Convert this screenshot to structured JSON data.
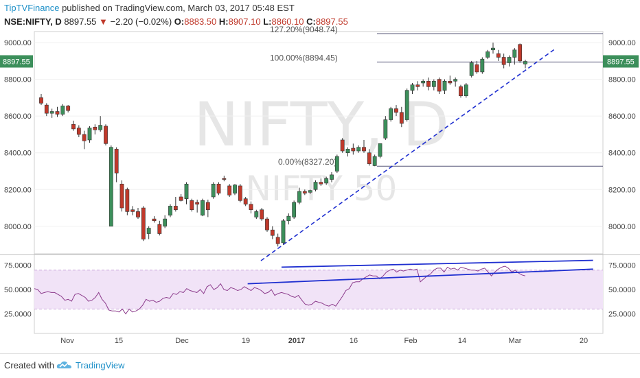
{
  "header": {
    "brand": "TipTVFinance",
    "published_text": "published on TradingView.com, March 03, 2017 05:48 EST",
    "symbol": "NSE:NIFTY, D",
    "last": "8897.55",
    "change": "−2.20 (−0.02%)",
    "open_label": "O:",
    "open": "8883.50",
    "high_label": "H:",
    "high": "8907.10",
    "low_label": "L:",
    "low": "8860.10",
    "close_label": "C:",
    "close": "8897.55"
  },
  "watermark": {
    "symbol": "NIFTY, D",
    "name": "NIFTY 50"
  },
  "footer": {
    "created_with": "Created with",
    "platform": "TradingView"
  },
  "colors": {
    "up": "#3c8f5b",
    "down": "#c0392b",
    "trend": "#1f2fd0",
    "rsi": "#8b3a8b",
    "rsi_band": "#f1e3f7",
    "fib": "#555577"
  },
  "chart_data": [
    {
      "type": "candlestick",
      "symbol": "NSE:NIFTY",
      "interval": "D",
      "ylim": [
        7850,
        9060
      ],
      "y_ticks": [
        8000,
        8200,
        8400,
        8600,
        8800,
        9000
      ],
      "y_tick_labels": [
        "8000.00",
        "8200.00",
        "8400.00",
        "8600.00",
        "8800.00",
        "9000.00"
      ],
      "x_ticks": [
        "Nov",
        "15",
        "Dec",
        "19",
        "2017",
        "16",
        "Feb",
        "14",
        "Mar",
        "20"
      ],
      "last_price_label": "8897.55",
      "candles": [
        {
          "o": 8700,
          "h": 8720,
          "l": 8660,
          "c": 8670
        },
        {
          "o": 8660,
          "h": 8670,
          "l": 8600,
          "c": 8615
        },
        {
          "o": 8615,
          "h": 8640,
          "l": 8590,
          "c": 8625
        },
        {
          "o": 8625,
          "h": 8650,
          "l": 8595,
          "c": 8610
        },
        {
          "o": 8610,
          "h": 8665,
          "l": 8600,
          "c": 8655
        },
        {
          "o": 8655,
          "h": 8660,
          "l": 8620,
          "c": 8630
        },
        {
          "o": 8555,
          "h": 8575,
          "l": 8520,
          "c": 8530
        },
        {
          "o": 8535,
          "h": 8550,
          "l": 8485,
          "c": 8500
        },
        {
          "o": 8500,
          "h": 8520,
          "l": 8420,
          "c": 8465
        },
        {
          "o": 8470,
          "h": 8545,
          "l": 8455,
          "c": 8535
        },
        {
          "o": 8540,
          "h": 8555,
          "l": 8500,
          "c": 8525
        },
        {
          "o": 8525,
          "h": 8600,
          "l": 8515,
          "c": 8550
        },
        {
          "o": 8545,
          "h": 8555,
          "l": 8440,
          "c": 8450
        },
        {
          "o": 8000,
          "h": 8440,
          "l": 8000,
          "c": 8430
        },
        {
          "o": 8420,
          "h": 8430,
          "l": 8240,
          "c": 8290
        },
        {
          "o": 8230,
          "h": 8250,
          "l": 8080,
          "c": 8100
        },
        {
          "o": 8200,
          "h": 8210,
          "l": 8060,
          "c": 8080
        },
        {
          "o": 8090,
          "h": 8110,
          "l": 8060,
          "c": 8080
        },
        {
          "o": 8080,
          "h": 8100,
          "l": 8040,
          "c": 8050
        },
        {
          "o": 8100,
          "h": 8110,
          "l": 7920,
          "c": 7930
        },
        {
          "o": 7960,
          "h": 8000,
          "l": 7930,
          "c": 7990
        },
        {
          "o": 8040,
          "h": 8055,
          "l": 8020,
          "c": 8030
        },
        {
          "o": 8010,
          "h": 8030,
          "l": 7950,
          "c": 7960
        },
        {
          "o": 8000,
          "h": 8060,
          "l": 7990,
          "c": 8040
        },
        {
          "o": 8060,
          "h": 8120,
          "l": 8050,
          "c": 8110
        },
        {
          "o": 8110,
          "h": 8160,
          "l": 8080,
          "c": 8090
        },
        {
          "o": 8160,
          "h": 8175,
          "l": 8135,
          "c": 8140
        },
        {
          "o": 8150,
          "h": 8240,
          "l": 8120,
          "c": 8230
        },
        {
          "o": 8140,
          "h": 8150,
          "l": 8080,
          "c": 8090
        },
        {
          "o": 8130,
          "h": 8145,
          "l": 8075,
          "c": 8120
        },
        {
          "o": 8060,
          "h": 8150,
          "l": 8055,
          "c": 8140
        },
        {
          "o": 8130,
          "h": 8145,
          "l": 8050,
          "c": 8090
        },
        {
          "o": 8160,
          "h": 8240,
          "l": 8150,
          "c": 8230
        },
        {
          "o": 8230,
          "h": 8240,
          "l": 8170,
          "c": 8180
        },
        {
          "o": 8260,
          "h": 8275,
          "l": 8245,
          "c": 8255
        },
        {
          "o": 8220,
          "h": 8230,
          "l": 8160,
          "c": 8170
        },
        {
          "o": 8180,
          "h": 8230,
          "l": 8170,
          "c": 8225
        },
        {
          "o": 8220,
          "h": 8230,
          "l": 8130,
          "c": 8140
        },
        {
          "o": 8150,
          "h": 8160,
          "l": 8110,
          "c": 8120
        },
        {
          "o": 8120,
          "h": 8135,
          "l": 8070,
          "c": 8090
        },
        {
          "o": 8050,
          "h": 8090,
          "l": 8040,
          "c": 8080
        },
        {
          "o": 8090,
          "h": 8100,
          "l": 8030,
          "c": 8040
        },
        {
          "o": 8040,
          "h": 8050,
          "l": 7970,
          "c": 7980
        },
        {
          "o": 7980,
          "h": 8000,
          "l": 7930,
          "c": 7950
        },
        {
          "o": 7940,
          "h": 7960,
          "l": 7890,
          "c": 7905
        },
        {
          "o": 7910,
          "h": 8040,
          "l": 7900,
          "c": 8030
        },
        {
          "o": 8030,
          "h": 8070,
          "l": 8010,
          "c": 8055
        },
        {
          "o": 8050,
          "h": 8140,
          "l": 8040,
          "c": 8130
        },
        {
          "o": 8130,
          "h": 8210,
          "l": 8120,
          "c": 8190
        },
        {
          "o": 8190,
          "h": 8200,
          "l": 8170,
          "c": 8180
        },
        {
          "o": 8185,
          "h": 8200,
          "l": 8175,
          "c": 8195
        },
        {
          "o": 8200,
          "h": 8250,
          "l": 8190,
          "c": 8240
        },
        {
          "o": 8240,
          "h": 8260,
          "l": 8220,
          "c": 8230
        },
        {
          "o": 8235,
          "h": 8270,
          "l": 8225,
          "c": 8260
        },
        {
          "o": 8255,
          "h": 8295,
          "l": 8240,
          "c": 8280
        },
        {
          "o": 8300,
          "h": 8390,
          "l": 8290,
          "c": 8380
        },
        {
          "o": 8470,
          "h": 8480,
          "l": 8400,
          "c": 8410
        },
        {
          "o": 8400,
          "h": 8430,
          "l": 8380,
          "c": 8420
        },
        {
          "o": 8425,
          "h": 8450,
          "l": 8390,
          "c": 8410
        },
        {
          "o": 8410,
          "h": 8440,
          "l": 8400,
          "c": 8430
        },
        {
          "o": 8430,
          "h": 8470,
          "l": 8400,
          "c": 8410
        },
        {
          "o": 8400,
          "h": 8420,
          "l": 8330,
          "c": 8340
        },
        {
          "o": 8330,
          "h": 8390,
          "l": 8327,
          "c": 8380
        },
        {
          "o": 8380,
          "h": 8450,
          "l": 8370,
          "c": 8450
        },
        {
          "o": 8480,
          "h": 8600,
          "l": 8470,
          "c": 8580
        },
        {
          "o": 8580,
          "h": 8650,
          "l": 8570,
          "c": 8640
        },
        {
          "o": 8640,
          "h": 8660,
          "l": 8600,
          "c": 8620
        },
        {
          "o": 8620,
          "h": 8650,
          "l": 8540,
          "c": 8560
        },
        {
          "o": 8580,
          "h": 8750,
          "l": 8570,
          "c": 8740
        },
        {
          "o": 8740,
          "h": 8780,
          "l": 8720,
          "c": 8770
        },
        {
          "o": 8770,
          "h": 8790,
          "l": 8740,
          "c": 8760
        },
        {
          "o": 8780,
          "h": 8800,
          "l": 8760,
          "c": 8790
        },
        {
          "o": 8790,
          "h": 8810,
          "l": 8740,
          "c": 8760
        },
        {
          "o": 8760,
          "h": 8800,
          "l": 8740,
          "c": 8790
        },
        {
          "o": 8800,
          "h": 8810,
          "l": 8720,
          "c": 8735
        },
        {
          "o": 8740,
          "h": 8800,
          "l": 8720,
          "c": 8790
        },
        {
          "o": 8790,
          "h": 8820,
          "l": 8770,
          "c": 8780
        },
        {
          "o": 8790,
          "h": 8810,
          "l": 8760,
          "c": 8800
        },
        {
          "o": 8760,
          "h": 8770,
          "l": 8700,
          "c": 8710
        },
        {
          "o": 8710,
          "h": 8780,
          "l": 8700,
          "c": 8770
        },
        {
          "o": 8820,
          "h": 8900,
          "l": 8810,
          "c": 8890
        },
        {
          "o": 8880,
          "h": 8900,
          "l": 8830,
          "c": 8840
        },
        {
          "o": 8840,
          "h": 8920,
          "l": 8830,
          "c": 8910
        },
        {
          "o": 8920,
          "h": 8960,
          "l": 8910,
          "c": 8950
        },
        {
          "o": 8960,
          "h": 9000,
          "l": 8940,
          "c": 8970
        },
        {
          "o": 8940,
          "h": 8960,
          "l": 8900,
          "c": 8920
        },
        {
          "o": 8920,
          "h": 8940,
          "l": 8860,
          "c": 8880
        },
        {
          "o": 8890,
          "h": 8930,
          "l": 8870,
          "c": 8920
        },
        {
          "o": 8920,
          "h": 8970,
          "l": 8880,
          "c": 8960
        },
        {
          "o": 8990,
          "h": 8995,
          "l": 8890,
          "c": 8900
        },
        {
          "o": 8883.5,
          "h": 8907.1,
          "l": 8860.1,
          "c": 8897.55
        }
      ],
      "fibonacci": [
        {
          "label": "127.20%(9048.74)",
          "value": 9048.74
        },
        {
          "label": "100.00%(8894.45)",
          "value": 8894.45
        },
        {
          "label": "0.00%(8327.20)",
          "value": 8327.2
        }
      ],
      "trendline": {
        "from": {
          "index": 45,
          "value": 7900
        },
        "to": {
          "index": 91,
          "value": 8870
        }
      }
    },
    {
      "type": "line",
      "indicator": "RSI",
      "ylim": [
        5,
        86
      ],
      "y_ticks": [
        25,
        50,
        75
      ],
      "y_tick_labels": [
        "25.0000",
        "50.0000",
        "75.0000"
      ],
      "overbought": 70,
      "oversold": 30,
      "values": [
        51,
        50,
        46,
        47,
        48,
        47,
        47,
        45,
        43,
        39,
        40,
        38,
        45,
        46,
        44,
        42,
        38,
        39,
        42,
        47,
        40,
        36,
        29,
        28,
        28,
        27,
        30,
        25,
        30,
        27,
        28,
        30,
        34,
        40,
        38,
        39,
        37,
        38,
        41,
        42,
        41,
        46,
        45,
        48,
        47,
        51,
        49,
        48,
        47,
        50,
        46,
        53,
        55,
        50,
        52,
        56,
        50,
        49,
        52,
        51,
        49,
        50,
        53,
        51,
        49,
        52,
        51,
        49,
        46,
        47,
        50,
        44,
        46,
        47,
        46,
        45,
        43,
        42,
        44,
        39,
        35,
        34,
        35,
        38,
        37,
        36,
        34,
        33,
        35,
        33,
        38,
        43,
        49,
        51,
        57,
        58,
        58,
        61,
        63,
        65,
        64,
        64,
        61,
        64,
        68,
        70,
        71,
        68,
        70,
        69,
        70,
        71,
        70,
        71,
        58,
        61,
        64,
        66,
        70,
        72,
        72,
        68,
        73,
        71,
        72,
        70,
        73,
        72,
        71,
        70,
        70,
        69,
        71,
        72,
        68,
        64,
        68,
        71,
        73,
        74,
        72,
        68,
        70,
        67,
        65,
        64
      ],
      "trend_upper": {
        "from": {
          "x": 73,
          "y": 73
        },
        "to": {
          "x": 165,
          "y": 80
        }
      },
      "trend_lower": {
        "from": {
          "x": 63,
          "y": 56
        },
        "to": {
          "x": 165,
          "y": 71
        }
      }
    }
  ]
}
